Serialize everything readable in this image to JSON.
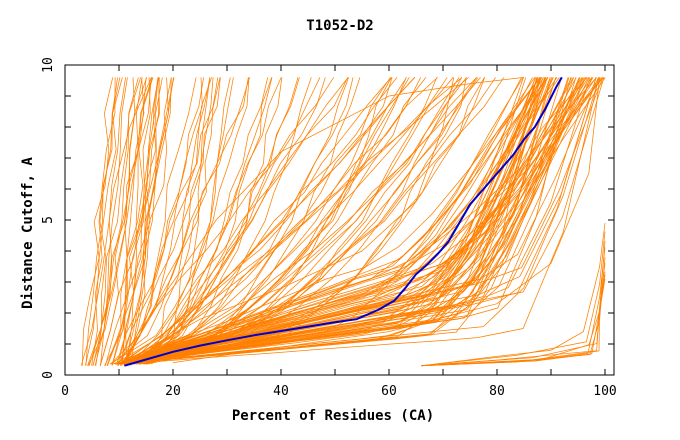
{
  "chart_data": {
    "type": "line",
    "title": "T1052-D2",
    "xlabel": "Percent of Residues (CA)",
    "ylabel": "Distance Cutoff, A",
    "xlim": [
      0,
      100
    ],
    "ylim": [
      0,
      10
    ],
    "x_ticks": [
      "0",
      "20",
      "40",
      "60",
      "80",
      "100"
    ],
    "y_ticks": [
      "0",
      "5",
      "10"
    ],
    "grid": false,
    "legend": "none",
    "colors": {
      "models": "#ff8000",
      "highlight": "#0000cc",
      "axes": "#000000"
    },
    "highlight_series": {
      "x": [
        11,
        15,
        20,
        25,
        30,
        35,
        40,
        45,
        50,
        54,
        58,
        61,
        63,
        65,
        67,
        69,
        71,
        73,
        75,
        77,
        79,
        81,
        83,
        85,
        87,
        89,
        91,
        92
      ],
      "y": [
        0.3,
        0.5,
        0.75,
        0.95,
        1.12,
        1.28,
        1.42,
        1.56,
        1.7,
        1.8,
        2.1,
        2.4,
        2.8,
        3.25,
        3.55,
        3.9,
        4.3,
        4.9,
        5.5,
        5.9,
        6.3,
        6.7,
        7.1,
        7.6,
        8.0,
        8.6,
        9.3,
        9.6
      ]
    },
    "model_family_count": 200,
    "model_series": [
      {
        "x": [
          3,
          5,
          7,
          9,
          12,
          16
        ],
        "y": [
          0.3,
          1.5,
          3.5,
          6.0,
          8.0,
          9.6
        ]
      },
      {
        "x": [
          10,
          18,
          28,
          40,
          60,
          75,
          85
        ],
        "y": [
          0.4,
          2.5,
          5.0,
          7.2,
          9.0,
          9.4,
          9.6
        ]
      },
      {
        "x": [
          12,
          25,
          40,
          55,
          65,
          70,
          72
        ],
        "y": [
          0.5,
          1.8,
          2.8,
          4.0,
          5.6,
          8.0,
          9.6
        ]
      },
      {
        "x": [
          20,
          40,
          60,
          80,
          90,
          97,
          99
        ],
        "y": [
          0.4,
          0.9,
          1.4,
          2.3,
          3.6,
          6.5,
          9.6
        ]
      },
      {
        "x": [
          66,
          80,
          90,
          96,
          99,
          100
        ],
        "y": [
          0.3,
          0.6,
          0.8,
          1.4,
          3.5,
          4.9
        ]
      }
    ]
  }
}
